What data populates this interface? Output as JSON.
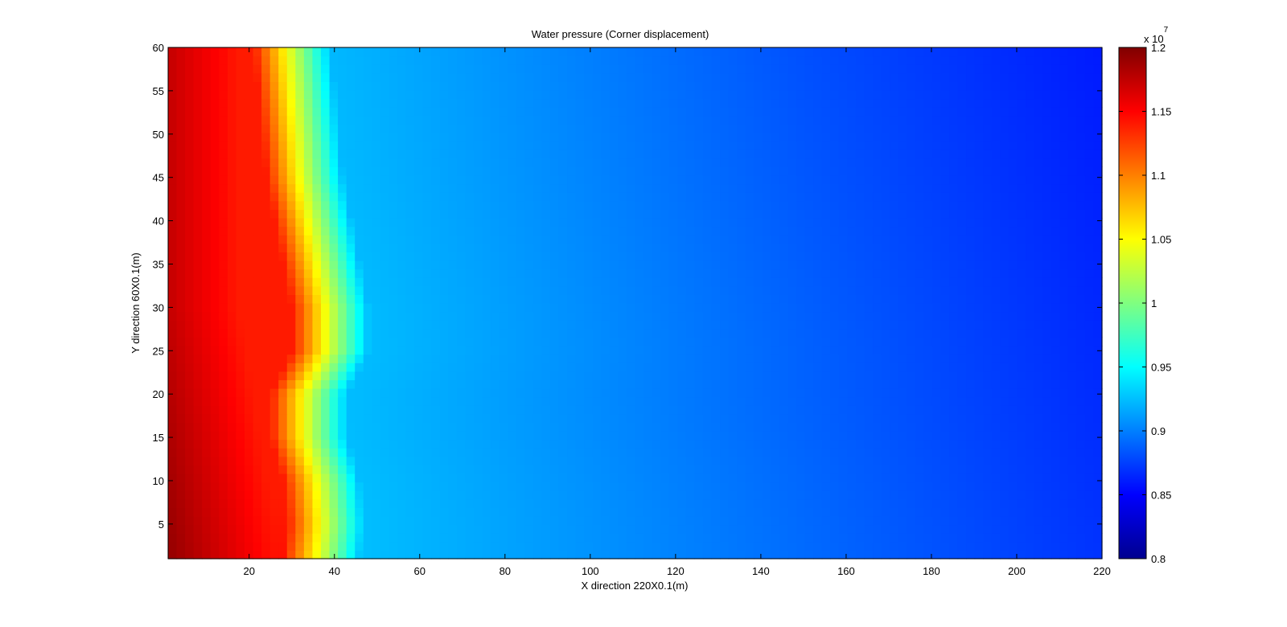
{
  "chart_data": {
    "type": "heatmap",
    "title": "Water pressure (Corner displacement)",
    "xlabel": "X direction 220X0.1(m)",
    "ylabel": "Y direction 60X0.1(m)",
    "xlim": [
      1,
      220
    ],
    "ylim": [
      1,
      60
    ],
    "x_ticks": [
      20,
      40,
      60,
      80,
      100,
      120,
      140,
      160,
      180,
      200,
      220
    ],
    "y_ticks": [
      5,
      10,
      15,
      20,
      25,
      30,
      35,
      40,
      45,
      50,
      55,
      60
    ],
    "colorbar": {
      "colormap": "jet",
      "range": [
        0.8,
        1.2
      ],
      "ticks": [
        "0.8",
        "0.85",
        "0.9",
        "0.95",
        "1",
        "1.05",
        "1.1",
        "1.15",
        "1.2"
      ],
      "multiplier_base": "x 10",
      "multiplier_exponent": "7"
    },
    "front_profile": {
      "description": "Approximate x-position (grid cells) of the steep pressure front versus y",
      "y": [
        1,
        5,
        10,
        15,
        20,
        25,
        30,
        35,
        40,
        45,
        50,
        55,
        60
      ],
      "x": [
        36,
        37,
        36,
        33,
        33,
        38,
        38,
        36,
        34,
        32,
        31,
        30,
        29
      ]
    },
    "far_field_values_e7": [
      {
        "x": 1,
        "value": 1.2
      },
      {
        "x": 30,
        "value": 1.14
      },
      {
        "x": 38,
        "value": 1.02
      },
      {
        "x": 45,
        "value": 0.93
      },
      {
        "x": 60,
        "value": 0.915
      },
      {
        "x": 100,
        "value": 0.905
      },
      {
        "x": 130,
        "value": 0.895
      },
      {
        "x": 160,
        "value": 0.885
      },
      {
        "x": 200,
        "value": 0.875
      },
      {
        "x": 220,
        "value": 0.87
      }
    ]
  }
}
